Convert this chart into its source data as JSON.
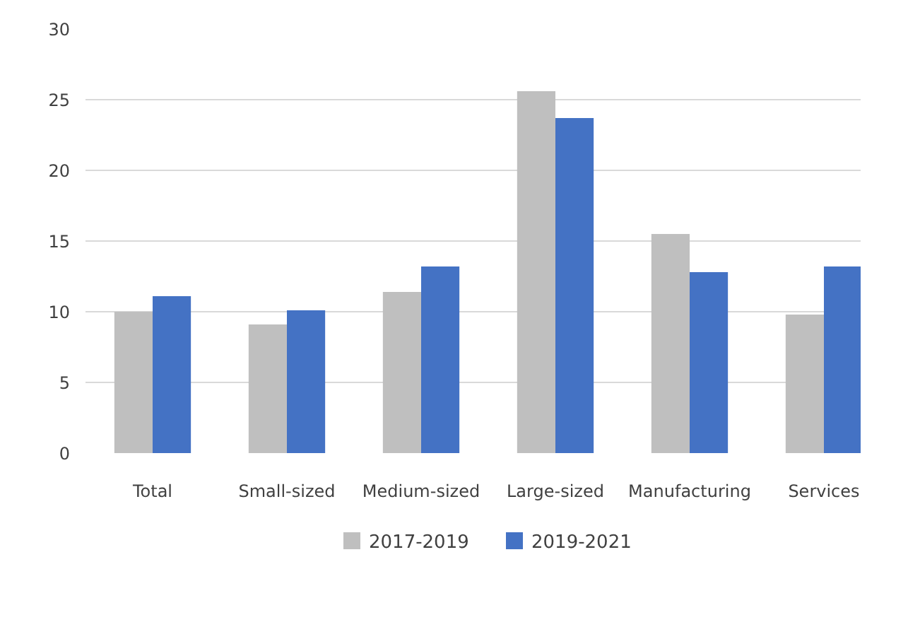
{
  "chart_data": {
    "type": "bar",
    "categories": [
      "Total",
      "Small-sized",
      "Medium-sized",
      "Large-sized",
      "Manufacturing",
      "Services"
    ],
    "series": [
      {
        "name": "2017-2019",
        "color": "#bfbfbf",
        "values": [
          10.0,
          9.1,
          11.4,
          25.6,
          15.5,
          9.8
        ]
      },
      {
        "name": "2019-2021",
        "color": "#4472c4",
        "values": [
          11.1,
          10.1,
          13.2,
          23.7,
          12.8,
          13.2
        ]
      }
    ],
    "ylim": [
      0,
      30
    ],
    "yticks": [
      0,
      5,
      10,
      15,
      20,
      25,
      30
    ],
    "grid": "y",
    "legend": "bottom"
  }
}
